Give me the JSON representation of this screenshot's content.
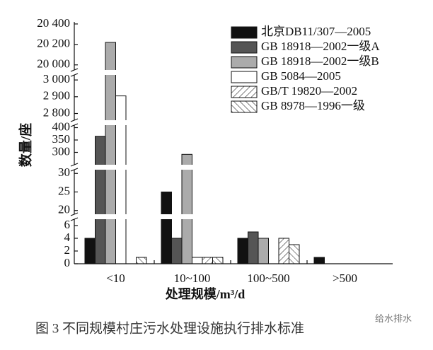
{
  "chart_data": {
    "type": "bar",
    "categories": [
      "<10",
      "10~100",
      "100~500",
      ">500"
    ],
    "x_label": "处理规模/m³/d",
    "y_label": "数量/座",
    "caption": "图 3   不同规模村庄污水处理设施执行排水标准",
    "watermark": "给水排水",
    "y_segments": [
      {
        "ylim": [
          0,
          7
        ],
        "yticks": [
          0,
          2,
          4,
          6
        ]
      },
      {
        "ylim": [
          19,
          31
        ],
        "yticks": [
          20,
          25,
          30
        ]
      },
      {
        "ylim": [
          250,
          410
        ],
        "yticks": [
          300,
          350,
          400
        ]
      },
      {
        "ylim": [
          2760,
          3030
        ],
        "yticks": [
          {
            "value": 2800,
            "label": "2 800"
          },
          {
            "value": 2900,
            "label": "2 900"
          },
          {
            "value": 3000,
            "label": "3 000"
          }
        ]
      },
      {
        "ylim": [
          19950,
          20420
        ],
        "yticks": [
          {
            "value": 20000,
            "label": "20 000"
          },
          {
            "value": 20200,
            "label": "20 200"
          },
          {
            "value": 20400,
            "label": "20 400"
          }
        ]
      }
    ],
    "series": [
      {
        "name": "北京DB11/307—2005",
        "color": "#111111",
        "values": [
          4,
          25,
          4,
          1
        ]
      },
      {
        "name": "GB 18918—2002一级A",
        "color": "#555555",
        "values": [
          365,
          4,
          5,
          0
        ]
      },
      {
        "name": "GB 18918—2002一级B",
        "color": "#ababab",
        "values": [
          20220,
          292,
          4,
          0
        ]
      },
      {
        "name": "GB 5084—2005",
        "color": "#ffffff",
        "values": [
          2905,
          1,
          0,
          0
        ]
      },
      {
        "name": "GB/T 19820—2002",
        "color": "#ffffff",
        "pattern": "/",
        "values": [
          0,
          1,
          4,
          0
        ]
      },
      {
        "name": "GB 8978—1996一级",
        "color": "#ffffff",
        "pattern": "\\",
        "values": [
          1,
          1,
          3,
          0
        ]
      }
    ]
  }
}
